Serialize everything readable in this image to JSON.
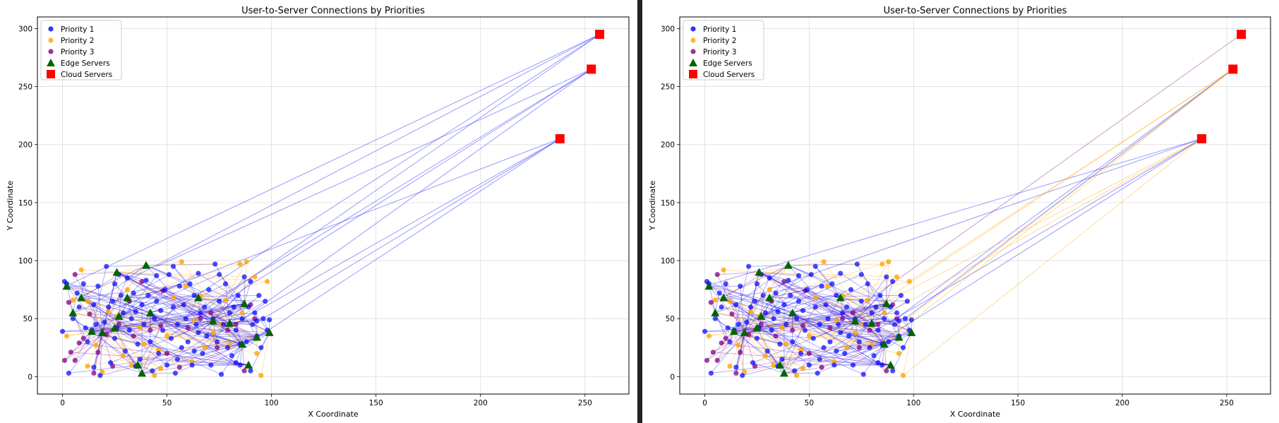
{
  "chart_data": [
    {
      "type": "scatter",
      "title": "User-to-Server Connections by Priorities",
      "xlabel": "X Coordinate",
      "ylabel": "Y Coordinate",
      "xlim": [
        -12,
        271
      ],
      "ylim": [
        -15,
        310
      ],
      "xticks": [
        0,
        50,
        100,
        150,
        200,
        250
      ],
      "yticks": [
        0,
        50,
        100,
        150,
        200,
        250,
        300
      ],
      "grid": true,
      "legend_position": "top-left",
      "legend": [
        "Priority 1",
        "Priority 2",
        "Priority 3",
        "Edge Servers",
        "Cloud Servers"
      ],
      "colors": {
        "priority1": "#0000ff",
        "priority2": "#ffa500",
        "priority3": "#800080",
        "edge": "#006400",
        "cloud": "#ff0000"
      },
      "series": [
        {
          "name": "Priority 1",
          "points": [
            [
              0,
              39
            ],
            [
              1,
              82
            ],
            [
              2,
              80
            ],
            [
              3,
              3
            ],
            [
              5,
              50
            ],
            [
              7,
              72
            ],
            [
              8,
              60
            ],
            [
              10,
              80
            ],
            [
              11,
              42
            ],
            [
              12,
              30
            ],
            [
              14,
              40
            ],
            [
              15,
              8
            ],
            [
              16,
              45
            ],
            [
              17,
              78
            ],
            [
              18,
              1
            ],
            [
              20,
              47
            ],
            [
              21,
              95
            ],
            [
              22,
              60
            ],
            [
              24,
              65
            ],
            [
              25,
              80
            ],
            [
              26,
              42
            ],
            [
              27,
              88
            ],
            [
              28,
              70
            ],
            [
              29,
              55
            ],
            [
              30,
              22
            ],
            [
              31,
              85
            ],
            [
              32,
              40
            ],
            [
              33,
              50
            ],
            [
              34,
              72
            ],
            [
              35,
              56
            ],
            [
              36,
              28
            ],
            [
              37,
              15
            ],
            [
              38,
              62
            ],
            [
              39,
              45
            ],
            [
              40,
              83
            ],
            [
              41,
              70
            ],
            [
              42,
              30
            ],
            [
              43,
              5
            ],
            [
              44,
              50
            ],
            [
              45,
              65
            ],
            [
              46,
              20
            ],
            [
              47,
              57
            ],
            [
              48,
              40
            ],
            [
              49,
              75
            ],
            [
              50,
              10
            ],
            [
              51,
              88
            ],
            [
              52,
              33
            ],
            [
              53,
              60
            ],
            [
              54,
              3
            ],
            [
              55,
              45
            ],
            [
              56,
              78
            ],
            [
              57,
              25
            ],
            [
              58,
              62
            ],
            [
              59,
              50
            ],
            [
              60,
              30
            ],
            [
              61,
              80
            ],
            [
              62,
              10
            ],
            [
              63,
              70
            ],
            [
              64,
              45
            ],
            [
              65,
              89
            ],
            [
              66,
              55
            ],
            [
              67,
              20
            ],
            [
              68,
              60
            ],
            [
              69,
              35
            ],
            [
              70,
              75
            ],
            [
              71,
              10
            ],
            [
              72,
              50
            ],
            [
              73,
              97
            ],
            [
              74,
              30
            ],
            [
              75,
              65
            ],
            [
              76,
              2
            ],
            [
              77,
              45
            ],
            [
              78,
              80
            ],
            [
              79,
              25
            ],
            [
              80,
              55
            ],
            [
              81,
              18
            ],
            [
              82,
              60
            ],
            [
              83,
              40
            ],
            [
              84,
              70
            ],
            [
              85,
              10
            ],
            [
              86,
              50
            ],
            [
              87,
              86
            ],
            [
              88,
              30
            ],
            [
              89,
              60
            ],
            [
              90,
              82
            ],
            [
              91,
              45
            ],
            [
              92,
              55
            ],
            [
              93,
              35
            ],
            [
              94,
              70
            ],
            [
              95,
              25
            ],
            [
              96,
              50
            ],
            [
              97,
              65
            ],
            [
              98,
              40
            ],
            [
              99,
              49
            ],
            [
              15,
              62
            ],
            [
              25,
              33
            ],
            [
              35,
              9
            ],
            [
              45,
              87
            ],
            [
              55,
              15
            ],
            [
              65,
              38
            ],
            [
              75,
              88
            ],
            [
              85,
              28
            ],
            [
              90,
              5
            ],
            [
              23,
              12
            ],
            [
              53,
              95
            ],
            [
              63,
              22
            ],
            [
              83,
              12
            ],
            [
              93,
              48
            ]
          ]
        },
        {
          "name": "Priority 2",
          "points": [
            [
              2,
              35
            ],
            [
              9,
              92
            ],
            [
              12,
              9
            ],
            [
              16,
              27
            ],
            [
              22,
              56
            ],
            [
              26,
              52
            ],
            [
              33,
              10
            ],
            [
              39,
              28
            ],
            [
              44,
              1
            ],
            [
              47,
              7
            ],
            [
              50,
              35
            ],
            [
              57,
              99
            ],
            [
              59,
              78
            ],
            [
              63,
              48
            ],
            [
              68,
              25
            ],
            [
              72,
              38
            ],
            [
              78,
              66
            ],
            [
              85,
              97
            ],
            [
              88,
              99
            ],
            [
              92,
              86
            ],
            [
              93,
              20
            ],
            [
              95,
              1
            ],
            [
              98,
              82
            ],
            [
              86,
              55
            ],
            [
              76,
              45
            ],
            [
              66,
              70
            ],
            [
              53,
              68
            ],
            [
              46,
              23
            ],
            [
              37,
              42
            ],
            [
              29,
              18
            ],
            [
              19,
              4
            ],
            [
              5,
              66
            ],
            [
              12,
              65
            ],
            [
              31,
              75
            ],
            [
              62,
              13
            ],
            [
              80,
              27
            ]
          ]
        },
        {
          "name": "Priority 3",
          "points": [
            [
              1,
              14
            ],
            [
              3,
              64
            ],
            [
              4,
              21
            ],
            [
              6,
              14
            ],
            [
              6,
              88
            ],
            [
              8,
              29
            ],
            [
              10,
              33
            ],
            [
              13,
              54
            ],
            [
              15,
              3
            ],
            [
              17,
              21
            ],
            [
              21,
              36
            ],
            [
              24,
              9
            ],
            [
              27,
              45
            ],
            [
              32,
              65
            ],
            [
              38,
              82
            ],
            [
              42,
              40
            ],
            [
              47,
              44
            ],
            [
              50,
              20
            ],
            [
              56,
              8
            ],
            [
              60,
              42
            ],
            [
              66,
              50
            ],
            [
              71,
              55
            ],
            [
              74,
              25
            ],
            [
              79,
              40
            ],
            [
              83,
              45
            ],
            [
              87,
              5
            ],
            [
              90,
              62
            ],
            [
              92,
              50
            ],
            [
              48,
              74
            ],
            [
              34,
              35
            ]
          ]
        },
        {
          "name": "Edge Servers",
          "points": [
            [
              2,
              78
            ],
            [
              5,
              55
            ],
            [
              9,
              68
            ],
            [
              14,
              39
            ],
            [
              19,
              38
            ],
            [
              25,
              42
            ],
            [
              26,
              90
            ],
            [
              27,
              52
            ],
            [
              31,
              68
            ],
            [
              36,
              10
            ],
            [
              38,
              3
            ],
            [
              40,
              96
            ],
            [
              42,
              55
            ],
            [
              65,
              68
            ],
            [
              72,
              48
            ],
            [
              80,
              46
            ],
            [
              86,
              28
            ],
            [
              87,
              63
            ],
            [
              89,
              10
            ],
            [
              93,
              34
            ],
            [
              99,
              38
            ]
          ]
        },
        {
          "name": "Cloud Servers",
          "points": [
            [
              238,
              205
            ],
            [
              253,
              265
            ],
            [
              257,
              295
            ]
          ]
        }
      ],
      "cloud_links": [
        [
          [
            4,
            80
          ],
          [
            257,
            295
          ]
        ],
        [
          [
            30,
            82
          ],
          [
            257,
            295
          ]
        ],
        [
          [
            45,
            95
          ],
          [
            253,
            265
          ]
        ],
        [
          [
            70,
            60
          ],
          [
            257,
            295
          ]
        ],
        [
          [
            85,
            48
          ],
          [
            253,
            265
          ]
        ],
        [
          [
            90,
            30
          ],
          [
            238,
            205
          ]
        ],
        [
          [
            75,
            38
          ],
          [
            238,
            205
          ]
        ],
        [
          [
            60,
            52
          ],
          [
            253,
            265
          ]
        ],
        [
          [
            96,
            50
          ],
          [
            238,
            205
          ]
        ],
        [
          [
            40,
            42
          ],
          [
            257,
            295
          ]
        ],
        [
          [
            24,
            58
          ],
          [
            238,
            205
          ]
        ],
        [
          [
            52,
            36
          ],
          [
            253,
            265
          ]
        ]
      ]
    },
    {
      "type": "scatter",
      "title": "User-to-Server Connections by Priorities",
      "xlabel": "X Coordinate",
      "ylabel": "Y Coordinate",
      "xlim": [
        -12,
        271
      ],
      "ylim": [
        -15,
        310
      ],
      "xticks": [
        0,
        50,
        100,
        150,
        200,
        250
      ],
      "yticks": [
        0,
        50,
        100,
        150,
        200,
        250,
        300
      ],
      "grid": true,
      "legend_position": "top-left",
      "legend": [
        "Priority 1",
        "Priority 2",
        "Priority 3",
        "Edge Servers",
        "Cloud Servers"
      ],
      "same_points_as_chart": 0,
      "cloud_links": [
        [
          [
            4,
            80
          ],
          [
            238,
            205
          ]
        ],
        [
          [
            30,
            75
          ],
          [
            238,
            205
          ]
        ],
        [
          [
            88,
            45
          ],
          [
            253,
            265
          ]
        ],
        [
          [
            96,
            50
          ],
          [
            253,
            265
          ]
        ],
        [
          [
            80,
            38
          ],
          [
            238,
            205
          ]
        ],
        [
          [
            60,
            35
          ],
          [
            253,
            265
          ]
        ],
        [
          [
            98,
            82
          ],
          [
            253,
            265
          ]
        ],
        [
          [
            95,
            1
          ],
          [
            238,
            205
          ]
        ],
        [
          [
            85,
            28
          ],
          [
            253,
            265
          ]
        ],
        [
          [
            88,
            55
          ],
          [
            238,
            205
          ]
        ],
        [
          [
            70,
            55
          ],
          [
            257,
            295
          ]
        ],
        [
          [
            90,
            40
          ],
          [
            253,
            265
          ]
        ],
        [
          [
            75,
            20
          ],
          [
            238,
            205
          ]
        ],
        [
          [
            82,
            60
          ],
          [
            238,
            205
          ]
        ]
      ],
      "cloud_link_colors": [
        "blue",
        "blue",
        "blue",
        "blue",
        "blue",
        "orange",
        "orange",
        "orange",
        "orange",
        "orange",
        "purple",
        "orange",
        "blue",
        "orange"
      ]
    }
  ]
}
